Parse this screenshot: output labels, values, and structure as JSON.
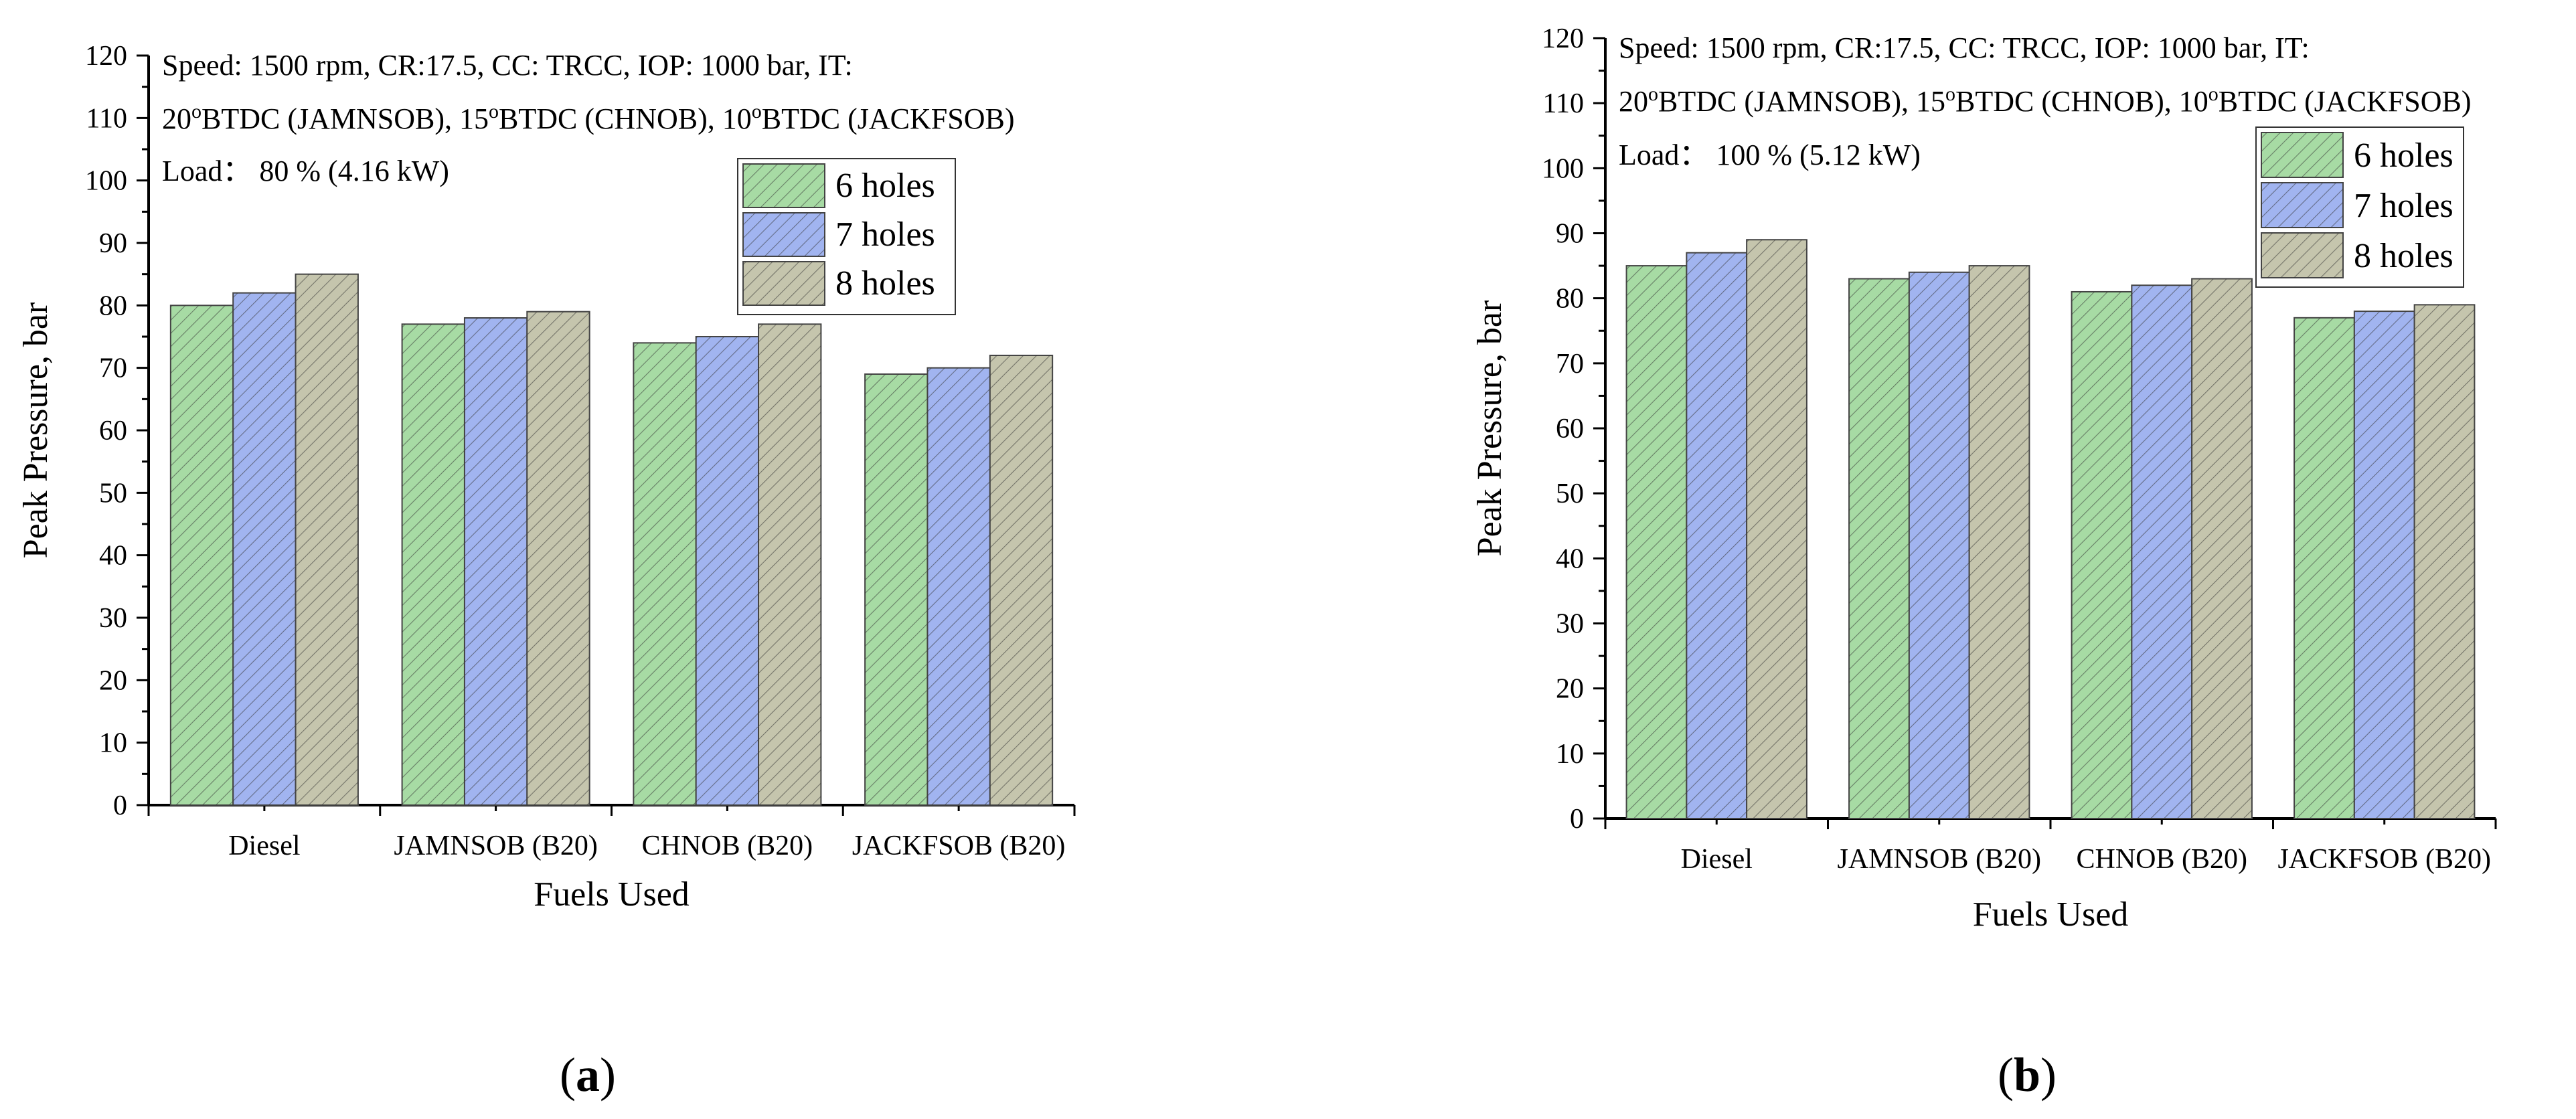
{
  "colors": {
    "series": [
      "#a7dba4",
      "#a1b4f0",
      "#c5c5ad"
    ],
    "axis": "#000000"
  },
  "chart_data": [
    {
      "type": "bar",
      "panel": "a",
      "categories": [
        "Diesel",
        "JAMNSOB (B20)",
        "CHNOB (B20)",
        "JACKFSOB (B20)"
      ],
      "series": [
        {
          "name": "6 holes",
          "values": [
            80,
            77,
            74,
            69
          ]
        },
        {
          "name": "7 holes",
          "values": [
            82,
            78,
            75,
            70
          ]
        },
        {
          "name": "8 holes",
          "values": [
            85,
            79,
            77,
            72
          ]
        }
      ],
      "xlabel": "Fuels Used",
      "ylabel": "Peak Pressure, bar",
      "ylim": [
        0,
        120
      ],
      "yticks": [
        "0",
        "10",
        "20",
        "30",
        "40",
        "50",
        "60",
        "70",
        "80",
        "90",
        "100",
        "110",
        "120"
      ],
      "annotation": {
        "line1": "Speed: 1500 rpm, CR:17.5, CC: TRCC, IOP: 1000 bar, IT:",
        "line2": [
          "20",
          "o",
          "BTDC (JAMNSOB), 15",
          "o",
          "BTDC (CHNOB), 10",
          "o",
          "BTDC (JACKFSOB)"
        ],
        "line3": "Load： 80 %  (4.16 kW)"
      },
      "legend_position": "top-right"
    },
    {
      "type": "bar",
      "panel": "b",
      "categories": [
        "Diesel",
        "JAMNSOB (B20)",
        "CHNOB (B20)",
        "JACKFSOB (B20)"
      ],
      "series": [
        {
          "name": "6 holes",
          "values": [
            85,
            83,
            81,
            77
          ]
        },
        {
          "name": "7 holes",
          "values": [
            87,
            84,
            82,
            78
          ]
        },
        {
          "name": "8 holes",
          "values": [
            89,
            85,
            83,
            79
          ]
        }
      ],
      "xlabel": "Fuels Used",
      "ylabel": "Peak Pressure, bar",
      "ylim": [
        0,
        120
      ],
      "yticks": [
        "0",
        "10",
        "20",
        "30",
        "40",
        "50",
        "60",
        "70",
        "80",
        "90",
        "100",
        "110",
        "120"
      ],
      "annotation": {
        "line1": "Speed: 1500 rpm, CR:17.5, CC: TRCC, IOP: 1000 bar, IT:",
        "line2": [
          "20",
          "o",
          "BTDC (JAMNSOB), 15",
          "o",
          "BTDC (CHNOB), 10",
          "o",
          "BTDC (JACKFSOB)"
        ],
        "line3": "Load： 100 %  (5.12 kW)"
      },
      "legend_position": "top-right"
    }
  ],
  "captions": [
    "a",
    "b"
  ]
}
